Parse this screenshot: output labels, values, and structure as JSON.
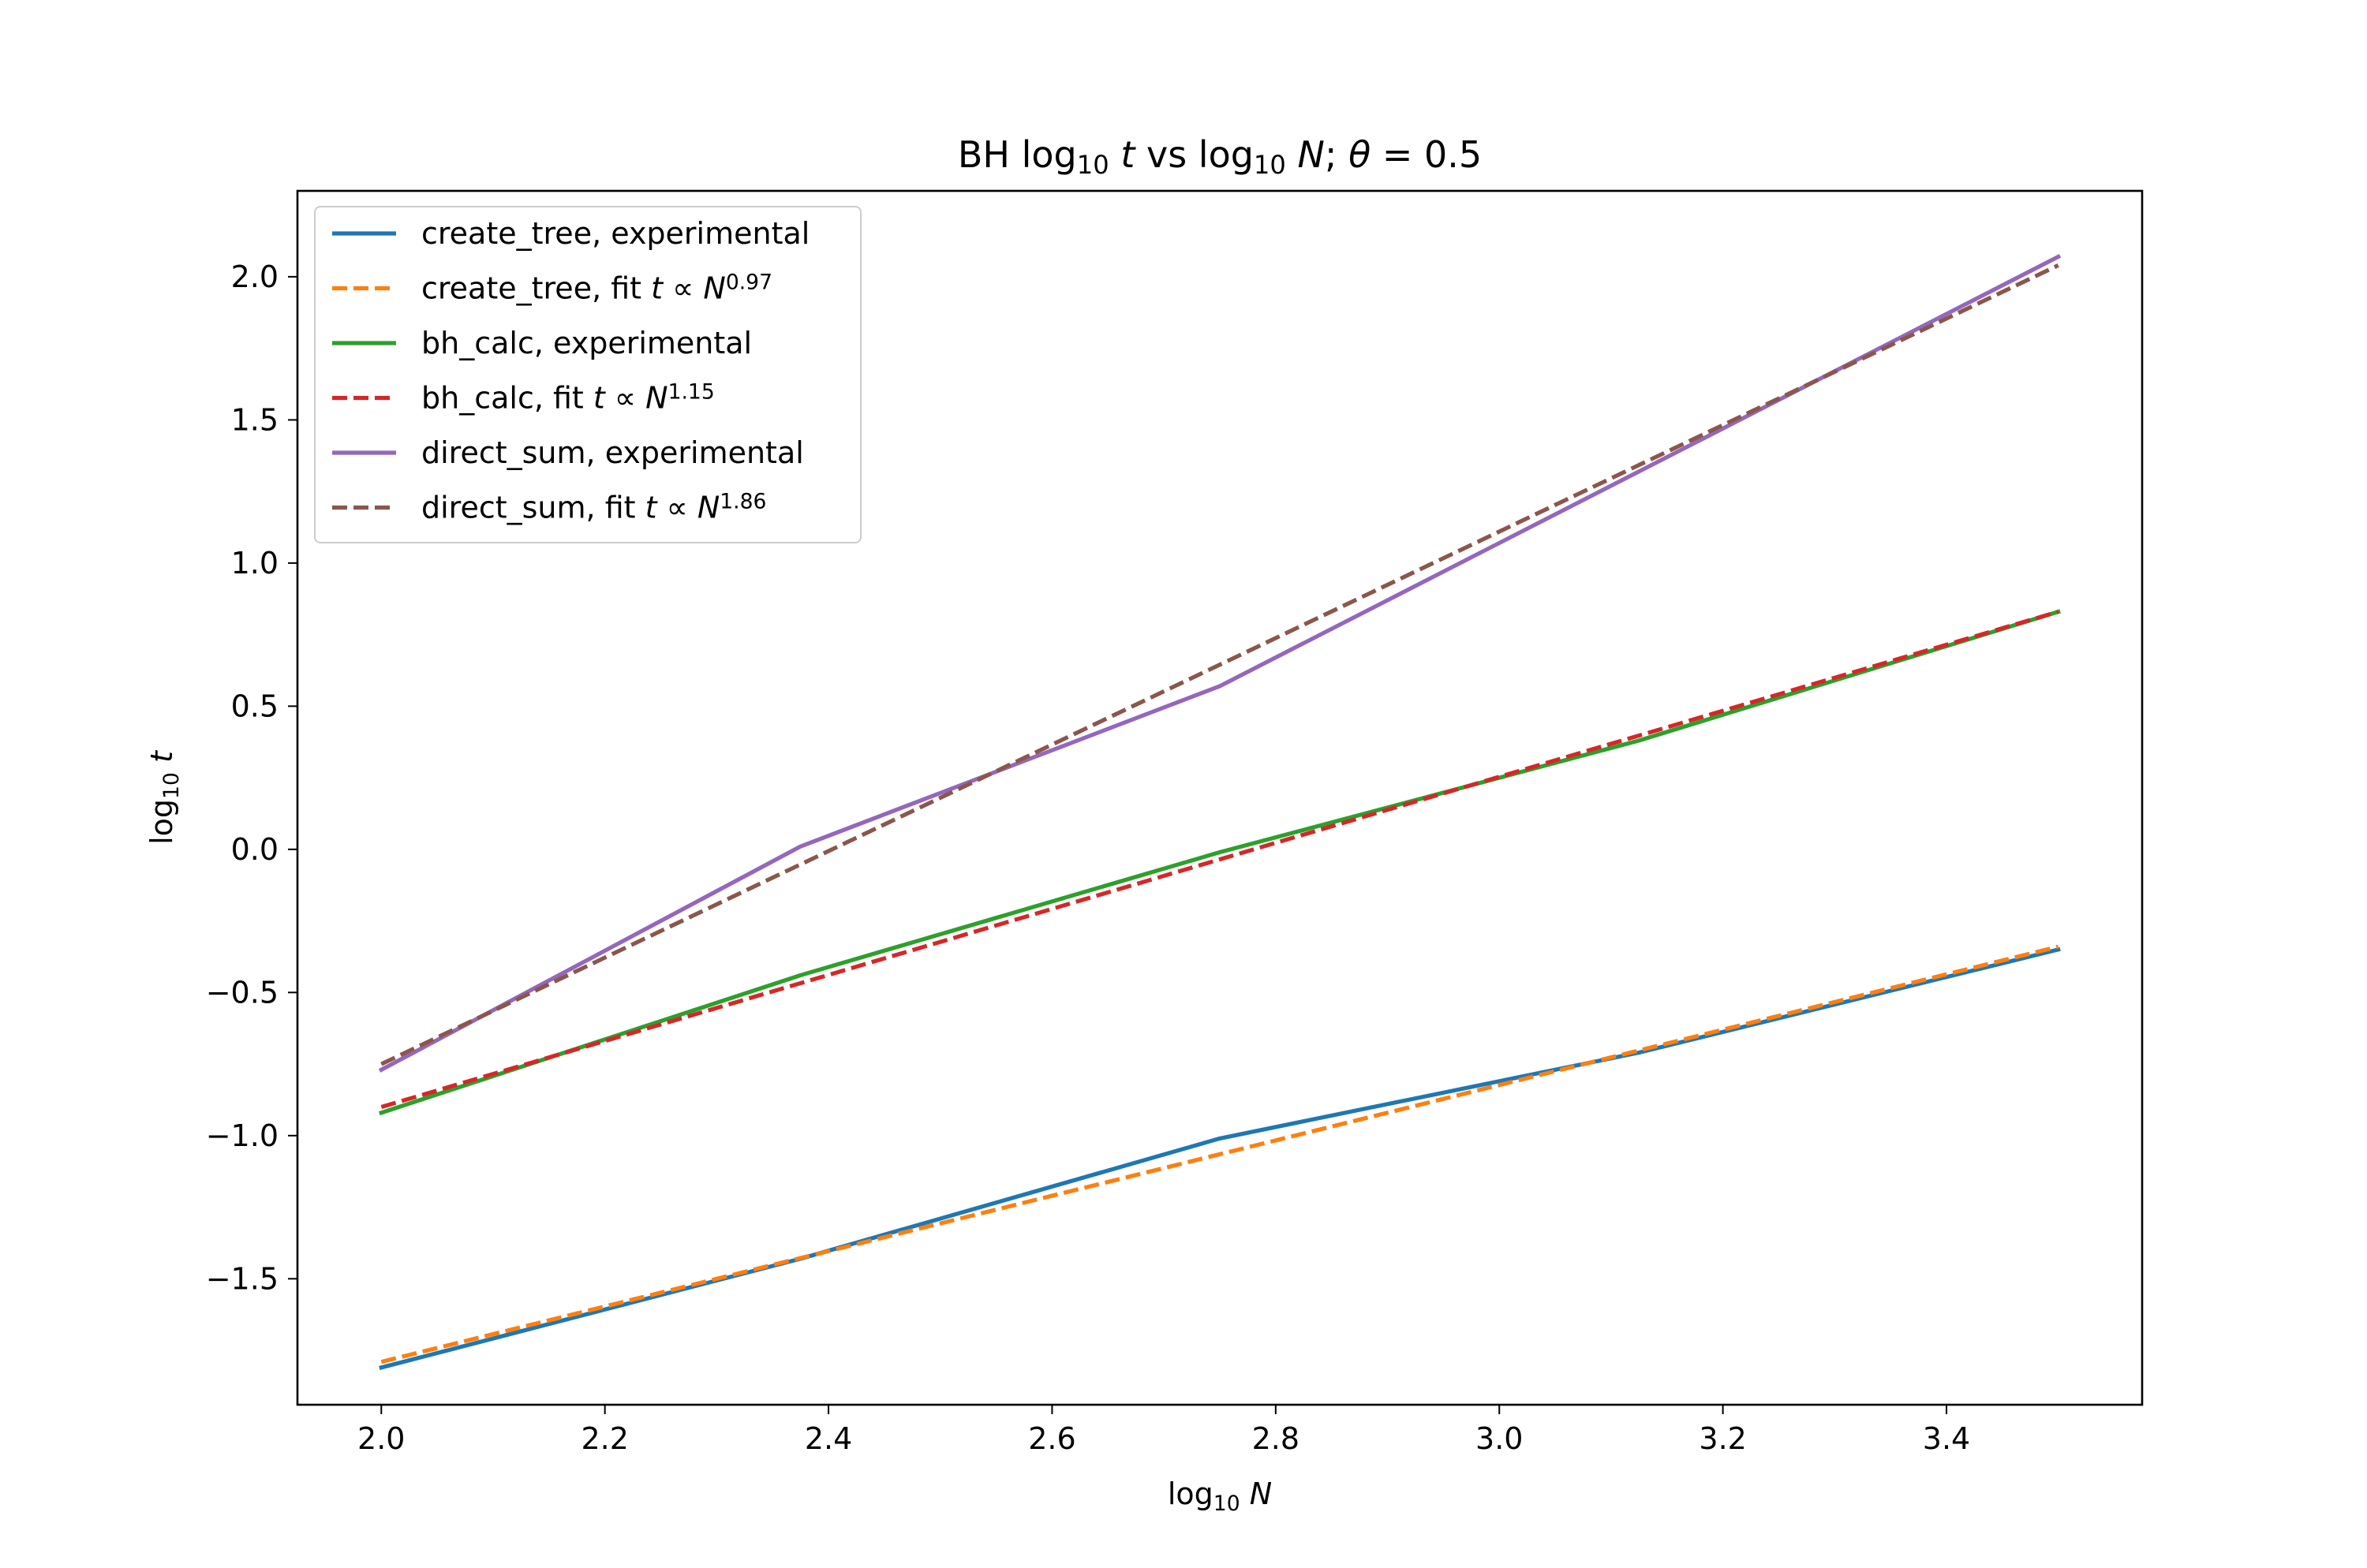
{
  "chart_data": {
    "type": "line",
    "title": {
      "parts": [
        {
          "t": "BH log",
          "s": "n"
        },
        {
          "t": "10",
          "s": "sub"
        },
        {
          "t": " ",
          "s": "n"
        },
        {
          "t": "t",
          "s": "i"
        },
        {
          "t": " vs log",
          "s": "n"
        },
        {
          "t": "10",
          "s": "sub"
        },
        {
          "t": " ",
          "s": "n"
        },
        {
          "t": "N",
          "s": "i"
        },
        {
          "t": "; ",
          "s": "n"
        },
        {
          "t": "θ",
          "s": "i"
        },
        {
          "t": " = 0.5",
          "s": "n"
        }
      ]
    },
    "xlabel": {
      "parts": [
        {
          "t": "log",
          "s": "n"
        },
        {
          "t": "10",
          "s": "sub"
        },
        {
          "t": " ",
          "s": "n"
        },
        {
          "t": "N",
          "s": "i"
        }
      ]
    },
    "ylabel": {
      "parts": [
        {
          "t": "log",
          "s": "n"
        },
        {
          "t": "10",
          "s": "sub"
        },
        {
          "t": " ",
          "s": "n"
        },
        {
          "t": "t",
          "s": "i"
        }
      ]
    },
    "xlim": [
      1.925,
      3.575
    ],
    "ylim": [
      -1.94,
      2.3
    ],
    "xticks": [
      2.0,
      2.2,
      2.4,
      2.6,
      2.8,
      3.0,
      3.2,
      3.4
    ],
    "xtick_labels": [
      "2.0",
      "2.2",
      "2.4",
      "2.6",
      "2.8",
      "3.0",
      "3.2",
      "3.4"
    ],
    "yticks": [
      -1.5,
      -1.0,
      -0.5,
      0.0,
      0.5,
      1.0,
      1.5,
      2.0
    ],
    "ytick_labels": [
      "−1.5",
      "−1.0",
      "−0.5",
      "0.0",
      "0.5",
      "1.0",
      "1.5",
      "2.0"
    ],
    "grid": false,
    "legend_position": "top-left",
    "series": [
      {
        "name": "create_tree, experimental",
        "legend": [
          {
            "t": "create_tree, experimental",
            "s": "n"
          }
        ],
        "color": "#1f77b4",
        "style": "solid",
        "x": [
          2.0,
          2.375,
          2.75,
          3.125,
          3.5
        ],
        "y": [
          -1.81,
          -1.43,
          -1.01,
          -0.71,
          -0.35
        ]
      },
      {
        "name": "create_tree, fit t ∝ N^0.97",
        "legend": [
          {
            "t": "create_tree, fit  ",
            "s": "n"
          },
          {
            "t": "t",
            "s": "i"
          },
          {
            "t": " ∝ ",
            "s": "n"
          },
          {
            "t": "N",
            "s": "i"
          },
          {
            "t": "0.97",
            "s": "sup"
          }
        ],
        "color": "#ff7f0e",
        "style": "dashed",
        "x": [
          2.0,
          3.5
        ],
        "y": [
          -1.79,
          -0.34
        ]
      },
      {
        "name": "bh_calc, experimental",
        "legend": [
          {
            "t": "bh_calc, experimental",
            "s": "n"
          }
        ],
        "color": "#2ca02c",
        "style": "solid",
        "x": [
          2.0,
          2.375,
          2.75,
          3.125,
          3.5
        ],
        "y": [
          -0.92,
          -0.44,
          -0.01,
          0.38,
          0.83
        ]
      },
      {
        "name": "bh_calc, fit t ∝ N^1.15",
        "legend": [
          {
            "t": "bh_calc, fit  ",
            "s": "n"
          },
          {
            "t": "t",
            "s": "i"
          },
          {
            "t": " ∝ ",
            "s": "n"
          },
          {
            "t": "N",
            "s": "i"
          },
          {
            "t": "1.15",
            "s": "sup"
          }
        ],
        "color": "#d62728",
        "style": "dashed",
        "x": [
          2.0,
          3.5
        ],
        "y": [
          -0.9,
          0.83
        ]
      },
      {
        "name": "direct_sum, experimental",
        "legend": [
          {
            "t": "direct_sum, experimental",
            "s": "n"
          }
        ],
        "color": "#9467bd",
        "style": "solid",
        "x": [
          2.0,
          2.375,
          2.75,
          3.125,
          3.5
        ],
        "y": [
          -0.77,
          0.01,
          0.57,
          1.32,
          2.07
        ]
      },
      {
        "name": "direct_sum, fit t ∝ N^1.86",
        "legend": [
          {
            "t": "direct_sum, fit  ",
            "s": "n"
          },
          {
            "t": "t",
            "s": "i"
          },
          {
            "t": " ∝ ",
            "s": "n"
          },
          {
            "t": "N",
            "s": "i"
          },
          {
            "t": "1.86",
            "s": "sup"
          }
        ],
        "color": "#8c564b",
        "style": "dashed",
        "x": [
          2.0,
          3.5
        ],
        "y": [
          -0.75,
          2.04
        ]
      }
    ]
  }
}
